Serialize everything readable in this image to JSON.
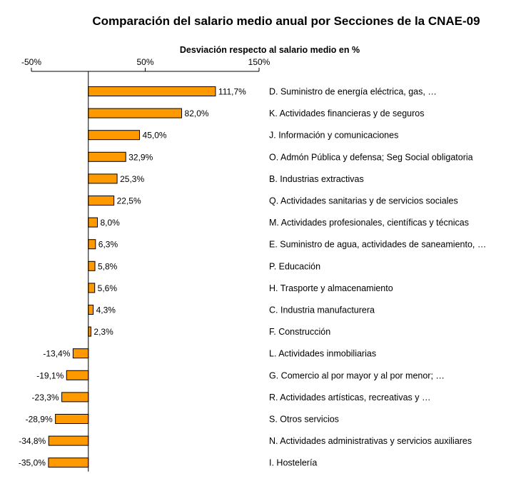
{
  "chart_data": {
    "type": "bar",
    "orientation": "horizontal",
    "title": "Comparación del salario medio anual por Secciones de la CNAE-09",
    "xlabel": "Desviación respecto al salario medio en %",
    "xlim": [
      -50,
      150
    ],
    "ticks": [
      -50,
      50,
      150
    ],
    "tick_labels": [
      "-50%",
      "50%",
      "150%"
    ],
    "grid": false,
    "bar_color": "#FF9900",
    "categories": [
      "D. Suministro de energía eléctrica, gas, …",
      "K. Actividades financieras y de seguros",
      "J. Información y comunicaciones",
      "O. Admón Pública y defensa; Seg Social obligatoria",
      "B. Industrias extractivas",
      "Q. Actividades sanitarias y de servicios sociales",
      "M. Actividades profesionales, científicas y técnicas",
      "E. Suministro de agua, actividades de saneamiento, …",
      "P. Educación",
      "H. Trasporte y almacenamiento",
      "C. Industria manufacturera",
      "F. Construcción",
      "L. Actividades inmobiliarias",
      "G. Comercio al por mayor y al por menor; …",
      "R. Actividades artísticas, recreativas y …",
      "S. Otros servicios",
      "N. Actividades administrativas y servicios auxiliares",
      "I. Hostelería"
    ],
    "values": [
      111.7,
      82.0,
      45.0,
      32.9,
      25.3,
      22.5,
      8.0,
      6.3,
      5.8,
      5.6,
      4.3,
      2.3,
      -13.4,
      -19.1,
      -23.3,
      -28.9,
      -34.8,
      -35.0
    ],
    "value_labels": [
      "111,7%",
      "82,0%",
      "45,0%",
      "32,9%",
      "25,3%",
      "22,5%",
      "8,0%",
      "6,3%",
      "5,8%",
      "5,6%",
      "4,3%",
      "2,3%",
      "-13,4%",
      "-19,1%",
      "-23,3%",
      "-28,9%",
      "-34,8%",
      "-35,0%"
    ]
  }
}
